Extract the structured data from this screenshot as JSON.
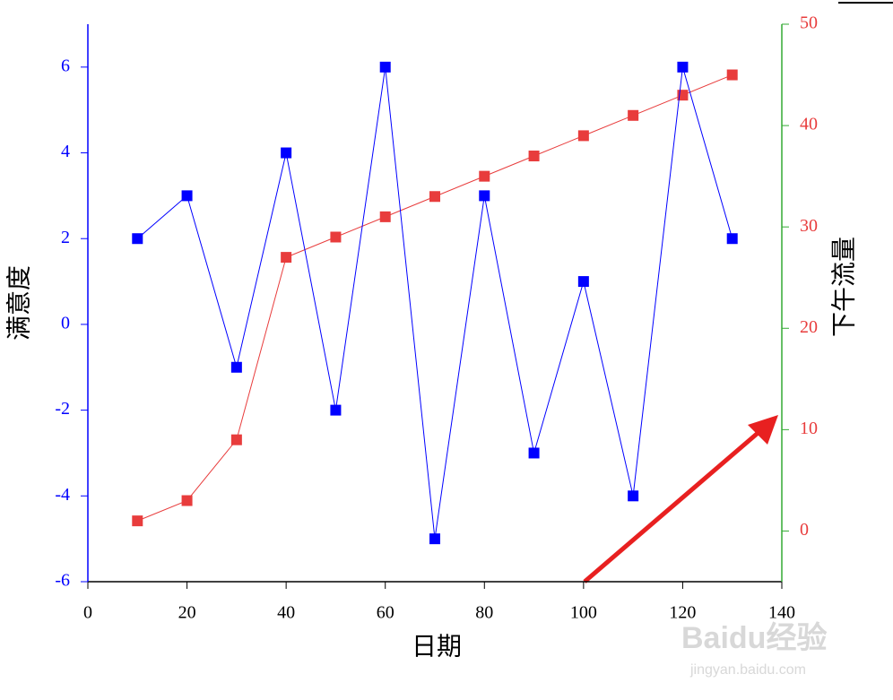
{
  "chart_data": {
    "type": "line",
    "x_label": "日期",
    "y_label": "满意度",
    "y2_label": "下午流量",
    "xlim": [
      0,
      140
    ],
    "xticks": [
      0,
      20,
      40,
      60,
      80,
      100,
      120,
      140
    ],
    "ylim": [
      -6,
      7
    ],
    "yticks": [
      -6,
      -4,
      -2,
      0,
      2,
      4,
      6
    ],
    "y2lim": [
      -5,
      50
    ],
    "y2ticks": [
      0,
      10,
      20,
      30,
      40,
      50
    ],
    "y_axis_color": "#0000ff",
    "y2_axis_color": "#33aa33",
    "series": [
      {
        "name": "满意度",
        "color": "#0000ff",
        "x": [
          10,
          20,
          30,
          40,
          50,
          60,
          70,
          80,
          90,
          100,
          110,
          120,
          130
        ],
        "values": [
          2,
          3,
          -1,
          4,
          -2,
          6,
          -5,
          3,
          -3,
          1,
          -4,
          6,
          2
        ]
      },
      {
        "name": "下午流量",
        "color": "#e83c3c",
        "axis": "y2",
        "x": [
          10,
          20,
          30,
          40,
          50,
          60,
          70,
          80,
          90,
          100,
          110,
          120,
          130
        ],
        "values": [
          1,
          3,
          9,
          27,
          29,
          31,
          33,
          35,
          37,
          39,
          41,
          43,
          45
        ]
      }
    ],
    "watermark": [
      "Baidu经验",
      "jingyan.baidu.com"
    ]
  }
}
